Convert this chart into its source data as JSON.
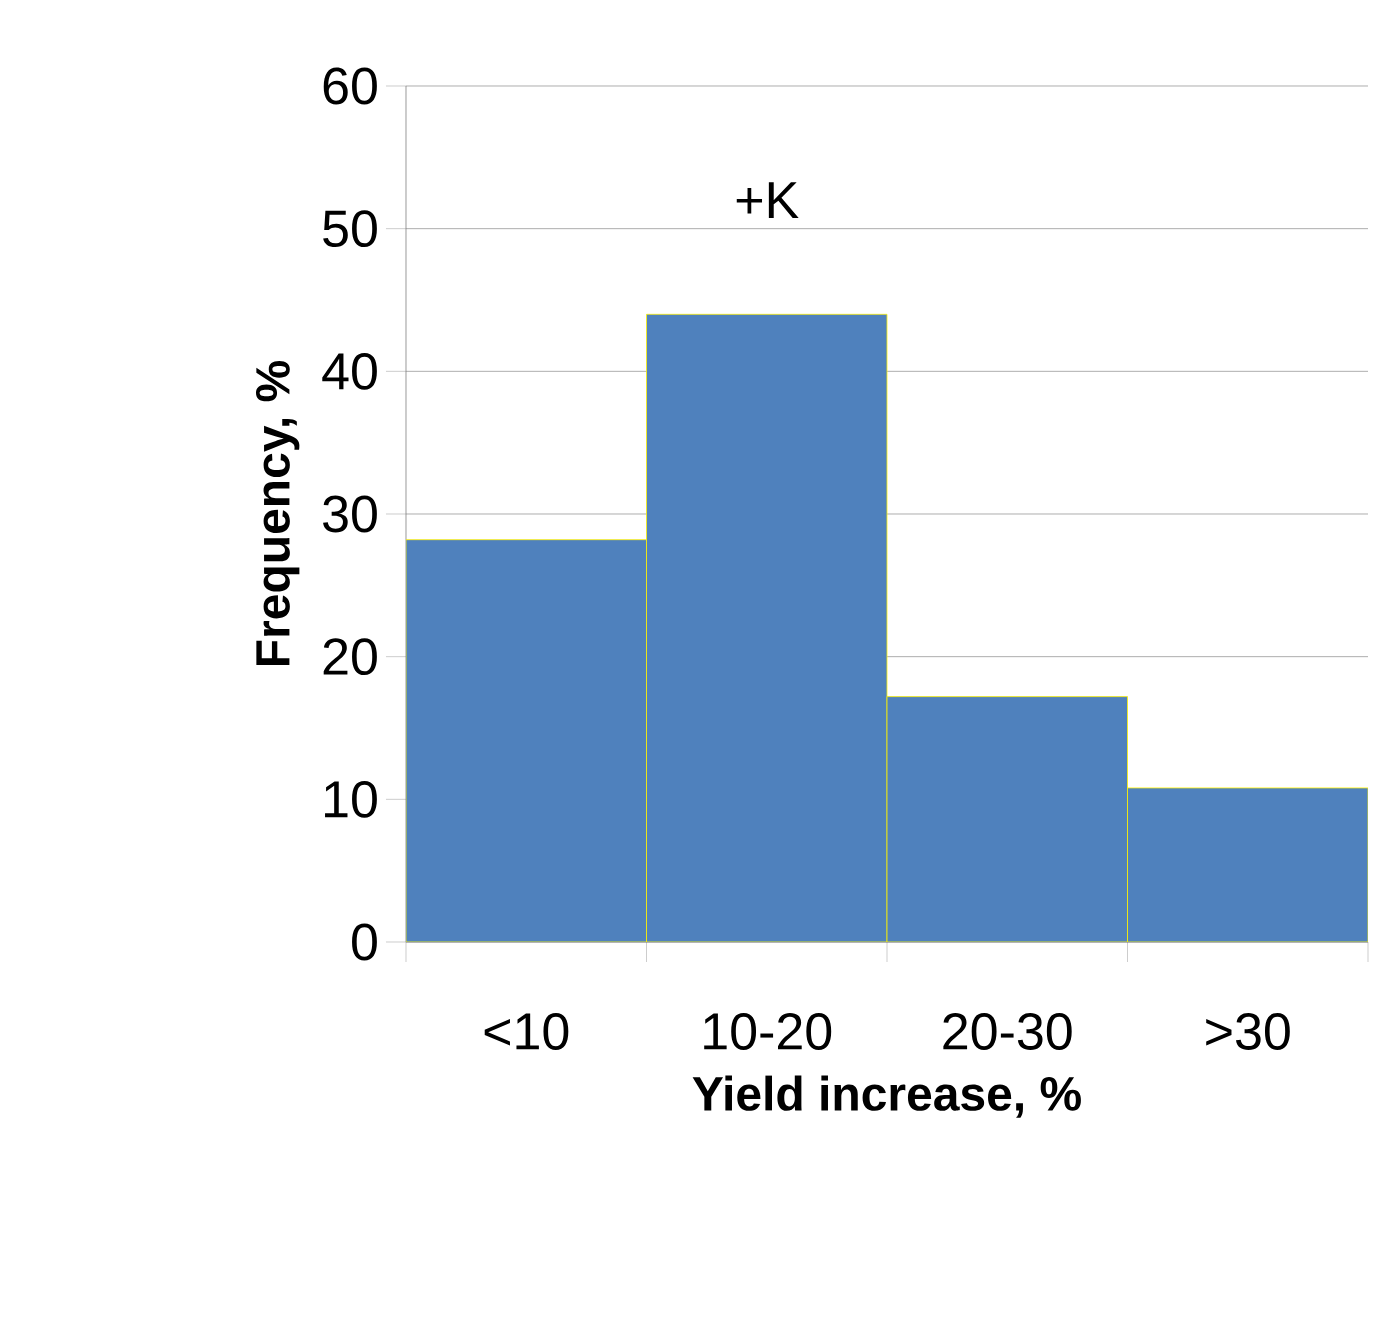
{
  "chart_data": {
    "type": "bar",
    "xlabel": "Yield increase, %",
    "ylabel": "Frequency, %",
    "categories": [
      "<10",
      "10-20",
      "20-30",
      ">30"
    ],
    "values": [
      28.2,
      44,
      17.2,
      10.8
    ],
    "color": "#4f81bd",
    "ylim": [
      0,
      60
    ],
    "yticks": [
      0,
      10,
      20,
      30,
      40,
      50,
      60
    ],
    "grid": "y",
    "annotations": [
      "+K"
    ]
  }
}
